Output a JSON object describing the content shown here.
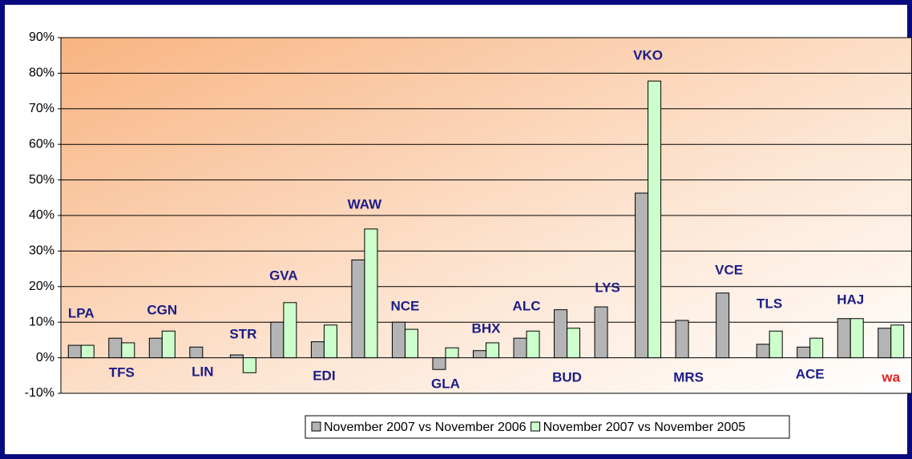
{
  "chart_data": {
    "type": "bar",
    "categories": [
      "LPA",
      "TFS",
      "CGN",
      "LIN",
      "STR",
      "GVA",
      "EDI",
      "WAW",
      "NCE",
      "GLA",
      "BHX",
      "ALC",
      "BUD",
      "LYS",
      "VKO",
      "MRS",
      "VCE",
      "TLS",
      "ACE",
      "HAJ",
      "wa"
    ],
    "category_label_colors": [
      "#1c1c86",
      "#1c1c86",
      "#1c1c86",
      "#1c1c86",
      "#1c1c86",
      "#1c1c86",
      "#1c1c86",
      "#1c1c86",
      "#1c1c86",
      "#1c1c86",
      "#1c1c86",
      "#1c1c86",
      "#1c1c86",
      "#1c1c86",
      "#1c1c86",
      "#1c1c86",
      "#1c1c86",
      "#1c1c86",
      "#1c1c86",
      "#1c1c86",
      "#e02020"
    ],
    "series": [
      {
        "name": "November 2007 vs November 2006",
        "color": "#b4b4b4",
        "values": [
          3.5,
          5.5,
          5.5,
          3,
          0.8,
          10,
          4.5,
          27.5,
          10,
          -3.3,
          2,
          5.5,
          13.5,
          14.3,
          46.3,
          10.5,
          18.2,
          3.8,
          3,
          11,
          8.3
        ]
      },
      {
        "name": "November 2007 vs November 2005",
        "color": "#ccffcc",
        "values": [
          3.5,
          4.2,
          7.5,
          null,
          -4.2,
          15.5,
          9.2,
          36.2,
          8,
          2.8,
          4.2,
          7.5,
          8.3,
          null,
          77.8,
          null,
          null,
          7.5,
          5.5,
          11,
          9.2
        ]
      }
    ],
    "ylim": [
      -10,
      90
    ],
    "yticks": [
      {
        "value": -10,
        "label": "-10%"
      },
      {
        "value": 0,
        "label": "0%"
      },
      {
        "value": 10,
        "label": "10%"
      },
      {
        "value": 20,
        "label": "20%"
      },
      {
        "value": 30,
        "label": "30%"
      },
      {
        "value": 40,
        "label": "40%"
      },
      {
        "value": 50,
        "label": "50%"
      },
      {
        "value": 60,
        "label": "60%"
      },
      {
        "value": 70,
        "label": "70%"
      },
      {
        "value": 80,
        "label": "80%"
      },
      {
        "value": 90,
        "label": "90%"
      }
    ],
    "grid": true
  }
}
